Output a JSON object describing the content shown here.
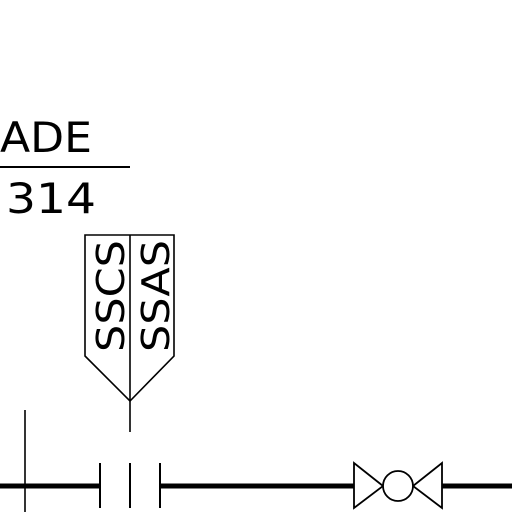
{
  "label": {
    "top": "ADE",
    "bottom": "314"
  },
  "tag": {
    "left": "SSCS",
    "right": "SSAS"
  }
}
